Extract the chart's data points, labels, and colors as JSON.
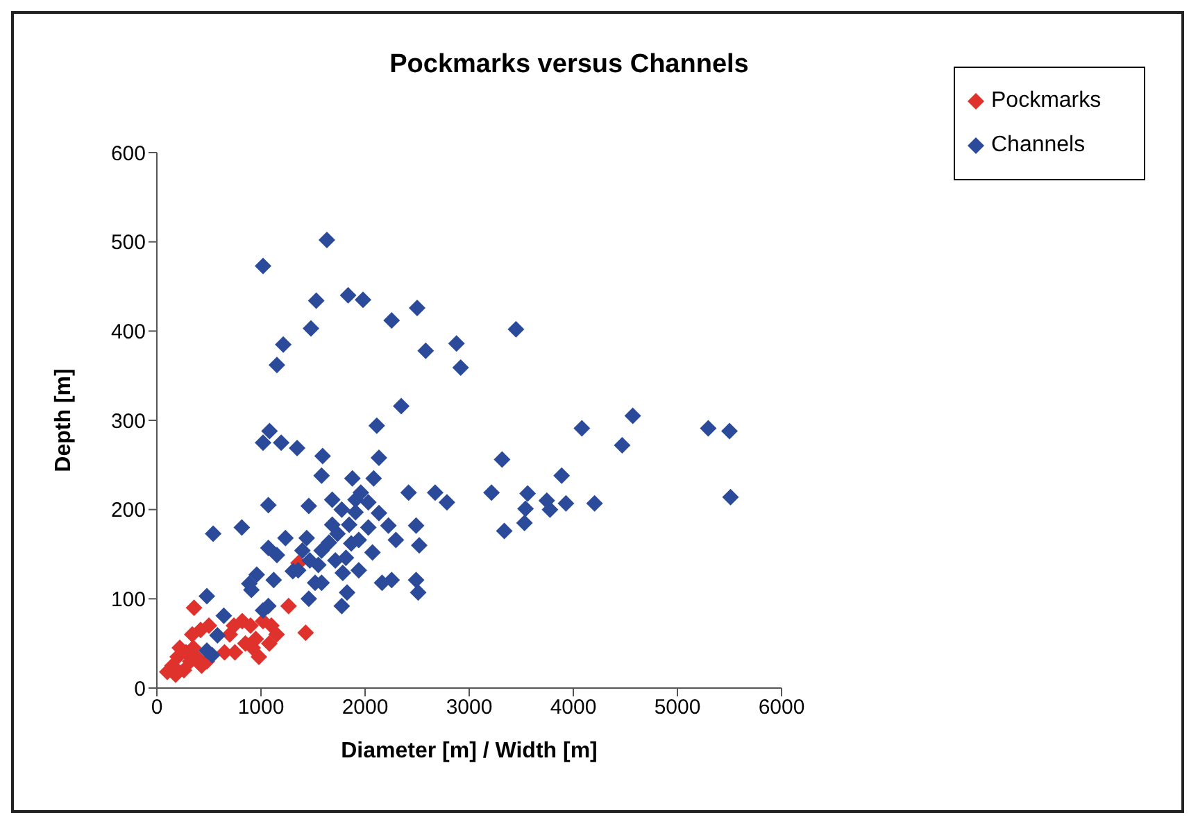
{
  "chart_data": {
    "type": "scatter",
    "title": "Pockmarks versus Channels",
    "xlabel": "Diameter [m] / Width [m]",
    "ylabel": "Depth [m]",
    "xlim": [
      0,
      6000
    ],
    "xticks": [
      0,
      1000,
      2000,
      3000,
      4000,
      5000,
      6000
    ],
    "ylim": [
      0,
      600
    ],
    "yticks": [
      0,
      100,
      200,
      300,
      400,
      500,
      600
    ],
    "grid": false,
    "legend": "top right",
    "marker": "diamond",
    "series": [
      {
        "name": "Pockmarks",
        "color": "#e0322c",
        "x": [
          100,
          150,
          180,
          200,
          220,
          260,
          280,
          320,
          340,
          350,
          357,
          380,
          420,
          430,
          500,
          650,
          700,
          740,
          820,
          850,
          900,
          920,
          950,
          980,
          1020,
          1080,
          1100,
          1150,
          1265,
          1360,
          1429,
          480,
          750
        ],
        "values": [
          18,
          25,
          15,
          35,
          45,
          20,
          40,
          30,
          60,
          45,
          90,
          35,
          65,
          25,
          70,
          40,
          60,
          70,
          75,
          50,
          70,
          45,
          55,
          35,
          75,
          50,
          70,
          60,
          92,
          140,
          62,
          30,
          40
        ]
      },
      {
        "name": "Channels",
        "color": "#2b4a9a",
        "x": [
          1020,
          1633,
          1531,
          1214,
          1153,
          1480,
          1837,
          1980,
          2255,
          2500,
          2582,
          2878,
          2918,
          3449,
          2347,
          2112,
          1020,
          1082,
          1194,
          1347,
          1592,
          1582,
          1878,
          1071,
          541,
          816,
          1459,
          1684,
          1776,
          1908,
          2031,
          2133,
          2082,
          2133,
          2224,
          2418,
          2490,
          2296,
          2520,
          2031,
          2071,
          2163,
          2255,
          2490,
          2510,
          1776,
          1827,
          2673,
          2786,
          3214,
          3316,
          3337,
          3561,
          3531,
          3541,
          3745,
          3776,
          3888,
          3929,
          4204,
          4082,
          4469,
          4571,
          5296,
          5500,
          5510,
          959,
          908,
          1020,
          1071,
          1122,
          1153,
          1235,
          1306,
          1357,
          1398,
          1469,
          1459,
          1520,
          1551,
          1582,
          1653,
          1714,
          1786,
          1816,
          1867,
          1939,
          1939,
          1684,
          1735,
          1439,
          1071,
          888,
          643,
          582,
          480,
          531,
          480,
          1582,
          1847,
          1908,
          1959
        ],
        "values": [
          473,
          502,
          434,
          385,
          362,
          403,
          440,
          435,
          412,
          426,
          378,
          386,
          359,
          402,
          316,
          294,
          275,
          288,
          275,
          269,
          260,
          238,
          235,
          205,
          173,
          180,
          204,
          211,
          200,
          197,
          208,
          258,
          235,
          196,
          182,
          219,
          182,
          166,
          160,
          180,
          152,
          118,
          121,
          121,
          107,
          92,
          107,
          219,
          208,
          219,
          256,
          176,
          218,
          185,
          201,
          210,
          200,
          238,
          207,
          207,
          291,
          272,
          305,
          291,
          288,
          214,
          127,
          110,
          87,
          92,
          121,
          149,
          168,
          131,
          132,
          154,
          143,
          100,
          118,
          138,
          154,
          163,
          143,
          129,
          146,
          162,
          166,
          132,
          183,
          173,
          168,
          157,
          117,
          81,
          59,
          42,
          37,
          103,
          118,
          183,
          211,
          219
        ]
      }
    ]
  }
}
